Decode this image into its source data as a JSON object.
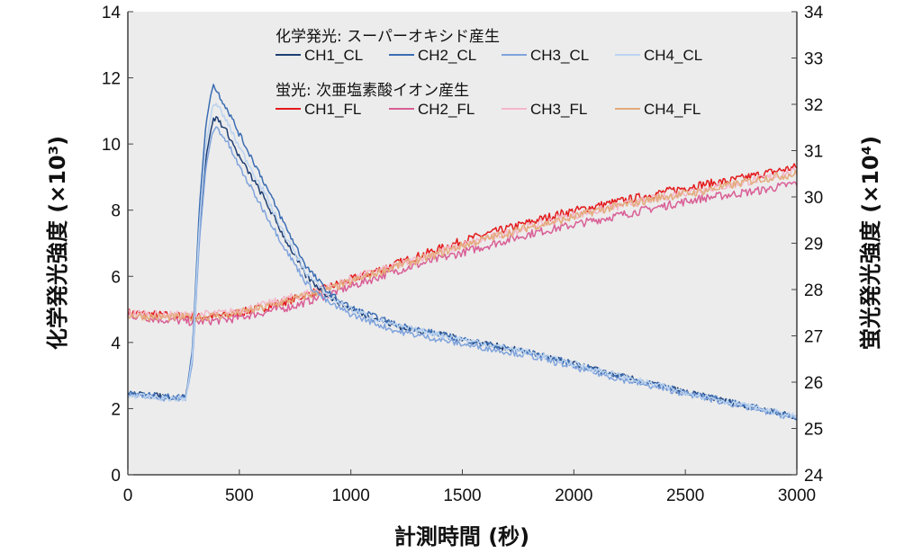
{
  "chart_data": {
    "type": "line",
    "title": "",
    "xlabel": "計測時間 (秒)",
    "ylabel_left": "化学発光強度 (×10³)",
    "ylabel_right": "蛍光発光強度 (×10⁴)",
    "xlim": [
      0,
      3000
    ],
    "ylim_left": [
      0,
      14
    ],
    "ylim_right": [
      24,
      34
    ],
    "x_ticks": [
      "0",
      "500",
      "1000",
      "1500",
      "2000",
      "2500",
      "3000"
    ],
    "y_left_ticks": [
      "0",
      "2",
      "4",
      "6",
      "8",
      "10",
      "12",
      "14"
    ],
    "y_right_ticks": [
      "24",
      "25",
      "26",
      "27",
      "28",
      "29",
      "30",
      "31",
      "32",
      "33",
      "34"
    ],
    "grid": false,
    "legend_placement": "top-center",
    "legend_groups": [
      {
        "title": "化学発光: スーパーオキシド産生",
        "entries": [
          "CH1_CL",
          "CH2_CL",
          "CH3_CL",
          "CH4_CL"
        ]
      },
      {
        "title": "蛍光: 次亜塩素酸イオン産生",
        "entries": [
          "CH1_FL",
          "CH2_FL",
          "CH3_FL",
          "CH4_FL"
        ]
      }
    ],
    "series": [
      {
        "name": "CH1_CL",
        "axis": "left",
        "color": "#1f3f73",
        "x": [
          0,
          100,
          200,
          260,
          290,
          320,
          350,
          380,
          400,
          450,
          500,
          600,
          700,
          800,
          900,
          1000,
          1200,
          1500,
          1800,
          2000,
          2200,
          2500,
          2800,
          3000
        ],
        "y": [
          2.45,
          2.4,
          2.35,
          2.35,
          3.5,
          7.2,
          9.6,
          10.7,
          10.8,
          10.3,
          9.6,
          8.5,
          7.2,
          6.0,
          5.4,
          5.0,
          4.5,
          4.1,
          3.7,
          3.35,
          3.0,
          2.5,
          2.05,
          1.75
        ]
      },
      {
        "name": "CH2_CL",
        "axis": "left",
        "color": "#3b6db3",
        "x": [
          0,
          100,
          200,
          260,
          290,
          320,
          350,
          380,
          400,
          450,
          500,
          600,
          700,
          800,
          900,
          1000,
          1200,
          1500,
          1800,
          2000,
          2200,
          2500,
          2800,
          3000
        ],
        "y": [
          2.45,
          2.4,
          2.35,
          2.35,
          3.8,
          8.0,
          10.6,
          11.8,
          11.6,
          11.0,
          10.3,
          9.0,
          7.6,
          6.3,
          5.5,
          5.05,
          4.55,
          4.1,
          3.7,
          3.35,
          3.0,
          2.5,
          2.05,
          1.75
        ]
      },
      {
        "name": "CH3_CL",
        "axis": "left",
        "color": "#7fa3dc",
        "x": [
          0,
          100,
          200,
          260,
          290,
          320,
          350,
          380,
          400,
          450,
          500,
          600,
          700,
          800,
          900,
          1000,
          1200,
          1500,
          1800,
          2000,
          2200,
          2500,
          2800,
          3000
        ],
        "y": [
          2.4,
          2.35,
          2.3,
          2.3,
          3.4,
          7.0,
          9.3,
          10.4,
          10.5,
          10.0,
          9.3,
          8.1,
          6.9,
          5.8,
          5.2,
          4.85,
          4.35,
          3.95,
          3.6,
          3.25,
          2.9,
          2.45,
          2.0,
          1.7
        ]
      },
      {
        "name": "CH4_CL",
        "axis": "left",
        "color": "#bcd4f0",
        "x": [
          0,
          100,
          200,
          260,
          290,
          320,
          350,
          380,
          400,
          450,
          500,
          600,
          700,
          800,
          900,
          1000,
          1200,
          1500,
          1800,
          2000,
          2200,
          2500,
          2800,
          3000
        ],
        "y": [
          2.4,
          2.35,
          2.3,
          2.3,
          3.6,
          7.5,
          10.0,
          11.1,
          11.2,
          10.6,
          9.9,
          8.7,
          7.3,
          6.1,
          5.4,
          5.0,
          4.5,
          4.1,
          3.7,
          3.35,
          3.0,
          2.5,
          2.05,
          1.75
        ]
      },
      {
        "name": "CH1_FL",
        "axis": "right",
        "color": "#e41a1c",
        "x": [
          0,
          150,
          300,
          450,
          600,
          750,
          900,
          1050,
          1200,
          1350,
          1500,
          1650,
          1800,
          1950,
          2100,
          2250,
          2400,
          2550,
          2700,
          2850,
          3000
        ],
        "y": [
          27.5,
          27.45,
          27.4,
          27.45,
          27.6,
          27.8,
          28.05,
          28.3,
          28.55,
          28.8,
          29.05,
          29.25,
          29.45,
          29.65,
          29.8,
          29.95,
          30.1,
          30.25,
          30.35,
          30.5,
          30.65
        ]
      },
      {
        "name": "CH2_FL",
        "axis": "right",
        "color": "#d95f96",
        "x": [
          0,
          150,
          300,
          450,
          600,
          750,
          900,
          1050,
          1200,
          1350,
          1500,
          1650,
          1800,
          1950,
          2100,
          2250,
          2400,
          2550,
          2700,
          2850,
          3000
        ],
        "y": [
          27.45,
          27.35,
          27.3,
          27.35,
          27.5,
          27.65,
          27.9,
          28.15,
          28.4,
          28.6,
          28.8,
          29.0,
          29.2,
          29.35,
          29.5,
          29.65,
          29.8,
          29.95,
          30.05,
          30.15,
          30.3
        ]
      },
      {
        "name": "CH3_FL",
        "axis": "right",
        "color": "#f4b6c8",
        "x": [
          0,
          150,
          300,
          450,
          600,
          750,
          900,
          1050,
          1200,
          1350,
          1500,
          1650,
          1800,
          1950,
          2100,
          2250,
          2400,
          2550,
          2700,
          2850,
          3000
        ],
        "y": [
          27.5,
          27.45,
          27.45,
          27.5,
          27.65,
          27.85,
          28.05,
          28.3,
          28.5,
          28.75,
          28.95,
          29.15,
          29.35,
          29.55,
          29.7,
          29.85,
          30.0,
          30.15,
          30.25,
          30.4,
          30.55
        ]
      },
      {
        "name": "CH4_FL",
        "axis": "right",
        "color": "#e3ab7b",
        "x": [
          0,
          150,
          300,
          450,
          600,
          750,
          900,
          1050,
          1200,
          1350,
          1500,
          1650,
          1800,
          1950,
          2100,
          2250,
          2400,
          2550,
          2700,
          2850,
          3000
        ],
        "y": [
          27.45,
          27.4,
          27.4,
          27.45,
          27.6,
          27.8,
          28.0,
          28.25,
          28.5,
          28.7,
          28.95,
          29.15,
          29.35,
          29.5,
          29.7,
          29.85,
          30.0,
          30.1,
          30.25,
          30.4,
          30.5
        ]
      }
    ]
  }
}
